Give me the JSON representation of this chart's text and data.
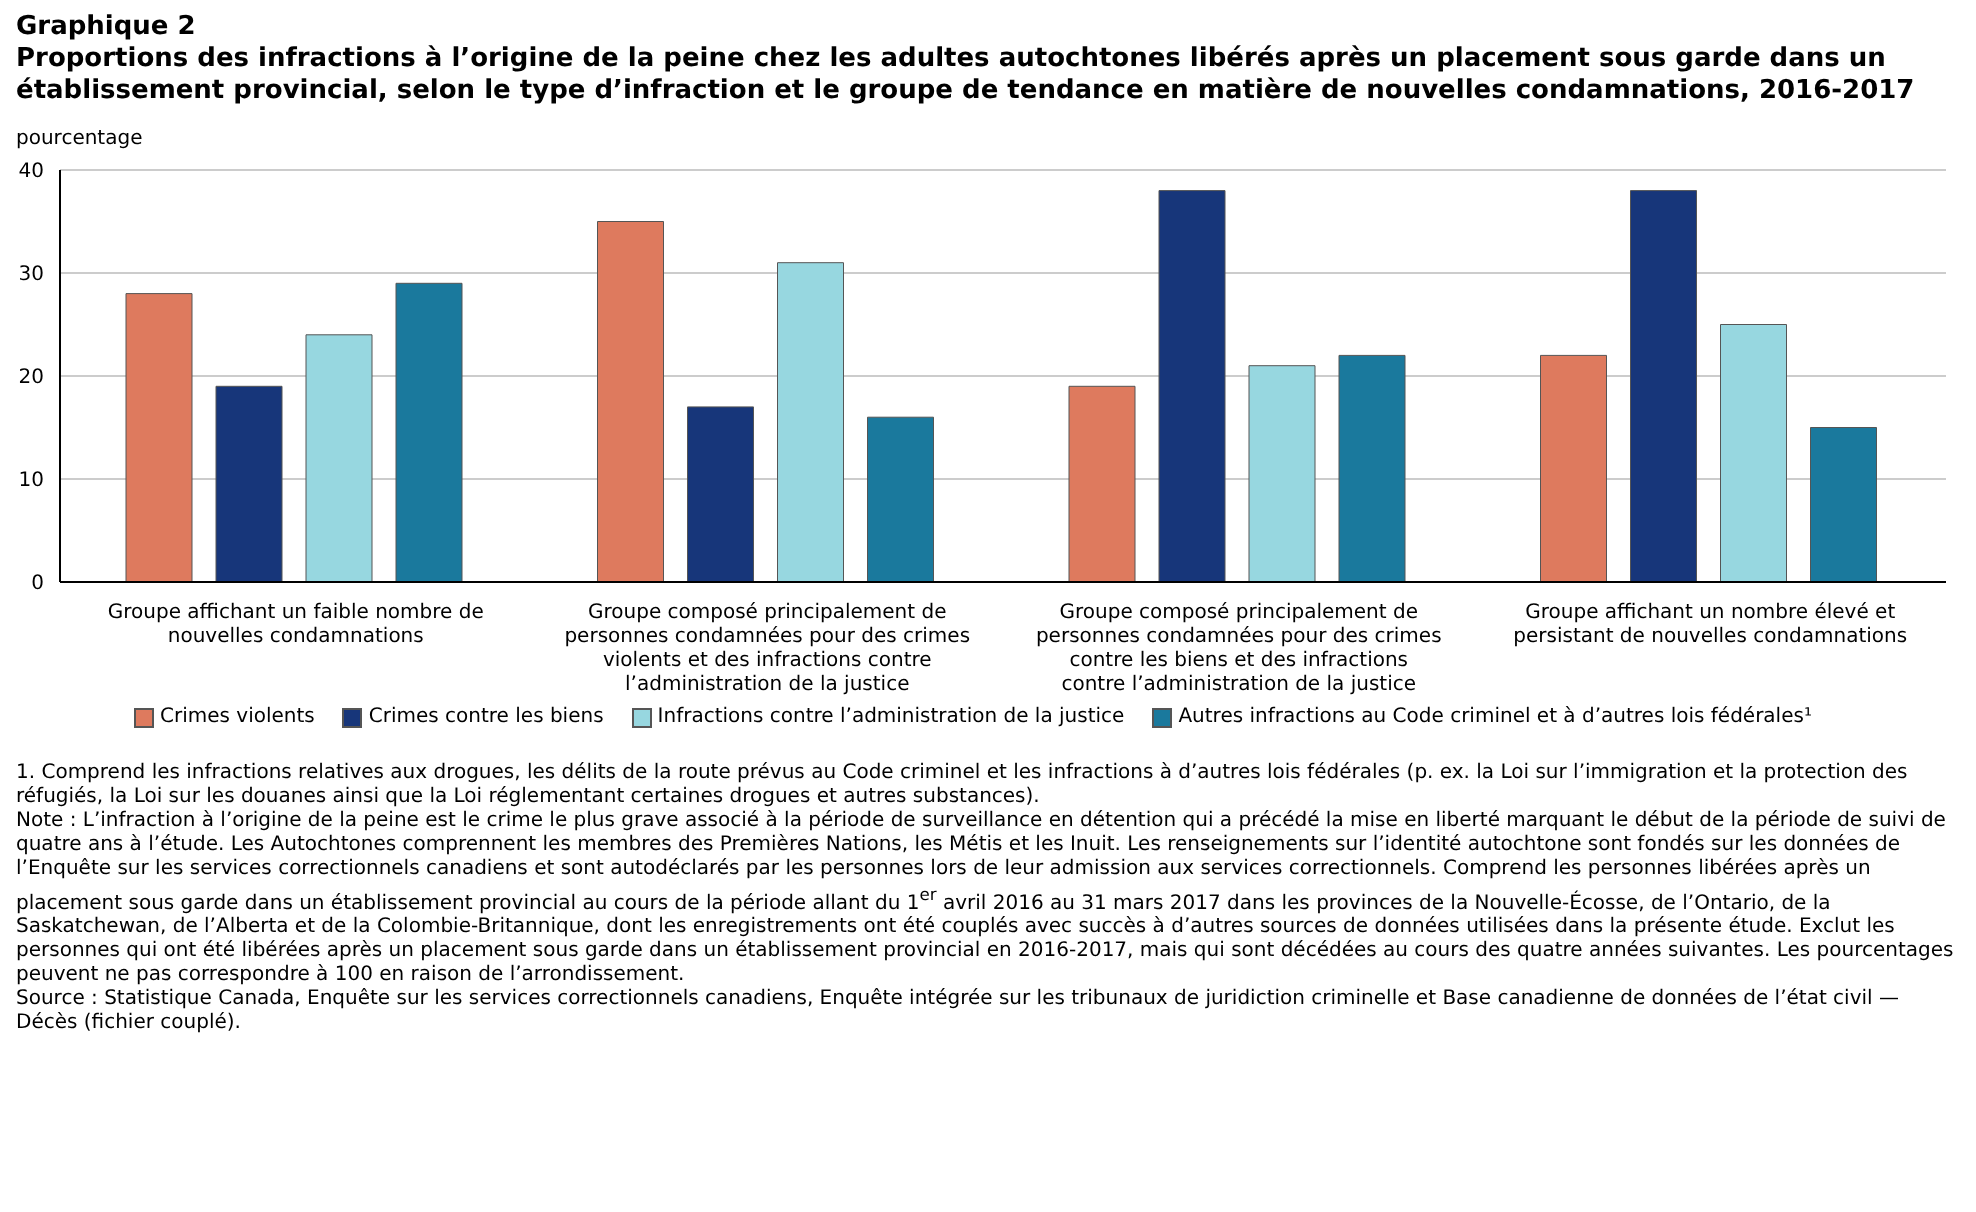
{
  "chart_data": {
    "type": "bar",
    "title": "Graphique 2",
    "subtitle": "Proportions des infractions à l’origine de la peine chez les adultes autochtones libérés après un placement sous garde dans un établissement provincial, selon le type d’infraction et le groupe de tendance en matière de nouvelles condamnations, 2016-2017",
    "ylabel": "pourcentage",
    "categories": [
      "Groupe affichant un faible nombre de nouvelles condamnations",
      "Groupe composé principalement de personnes condamnées pour des crimes violents et des infractions contre l’administration de la justice",
      "Groupe composé principalement de personnes condamnées pour des crimes contre les biens et des infractions contre l’administration de la justice",
      "Groupe affichant un nombre élevé et persistant de nouvelles condamnations"
    ],
    "series": [
      {
        "name": "Crimes violents",
        "color": "#de7a5e",
        "values": [
          28,
          35,
          19,
          22
        ]
      },
      {
        "name": "Crimes contre les biens",
        "color": "#17367a",
        "values": [
          19,
          17,
          38,
          38
        ]
      },
      {
        "name": "Infractions contre l’administration de la justice",
        "color": "#97d7e0",
        "values": [
          24,
          31,
          21,
          25
        ]
      },
      {
        "name": "Autres infractions au Code criminel et à d’autres lois fédérales¹",
        "color": "#1a799d",
        "values": [
          29,
          16,
          22,
          15
        ]
      }
    ],
    "ylim": [
      0,
      40
    ],
    "yticks": [
      0,
      10,
      20,
      30,
      40
    ],
    "grid": "y",
    "legend": "bottom",
    "annotations": [
      "1. Comprend les infractions relatives aux drogues, les délits de la route prévus au Code criminel et les infractions à d’autres lois fédérales (p. ex. la Loi sur l’immigration et la protection des réfugiés, la Loi sur les douanes ainsi que la Loi réglementant certaines drogues et autres substances).",
      "Note : L’infraction à l’origine de la peine est le crime le plus grave associé à la période de surveillance en détention qui a précédé la mise en liberté marquant le début de la période de suivi de quatre ans à l’étude. Les Autochtones comprennent les membres des Premières Nations, les Métis et les Inuit. Les renseignements sur l’identité autochtone sont fondés sur les données de l’Enquête sur les services correctionnels canadiens et sont autodéclarés par les personnes lors de leur admission aux services correctionnels. Comprend les personnes libérées après un placement sous garde dans un établissement provincial au cours de la période allant du 1$^{er}$ avril 2016 au 31 mars 2017 dans les provinces de la Nouvelle-Écosse, de l’Ontario, de la Saskatchewan, de l’Alberta et de la Colombie-Britannique, dont les enregistrements ont été couplés avec succès à d’autres sources de données utilisées dans la présente étude. Exclut les personnes qui ont été libérées après un placement sous garde dans un établissement provincial en 2016-2017, mais qui sont décédées au cours des quatre années suivantes. Les pourcentages peuvent ne pas correspondre à 100 en raison de l’arrondissement.",
      "Source : Statistique Canada, Enquête sur les services correctionnels canadiens, Enquête intégrée sur les tribunaux de juridiction criminelle et Base canadienne de données de l’état civil — Décès (fichier couplé)."
    ]
  }
}
